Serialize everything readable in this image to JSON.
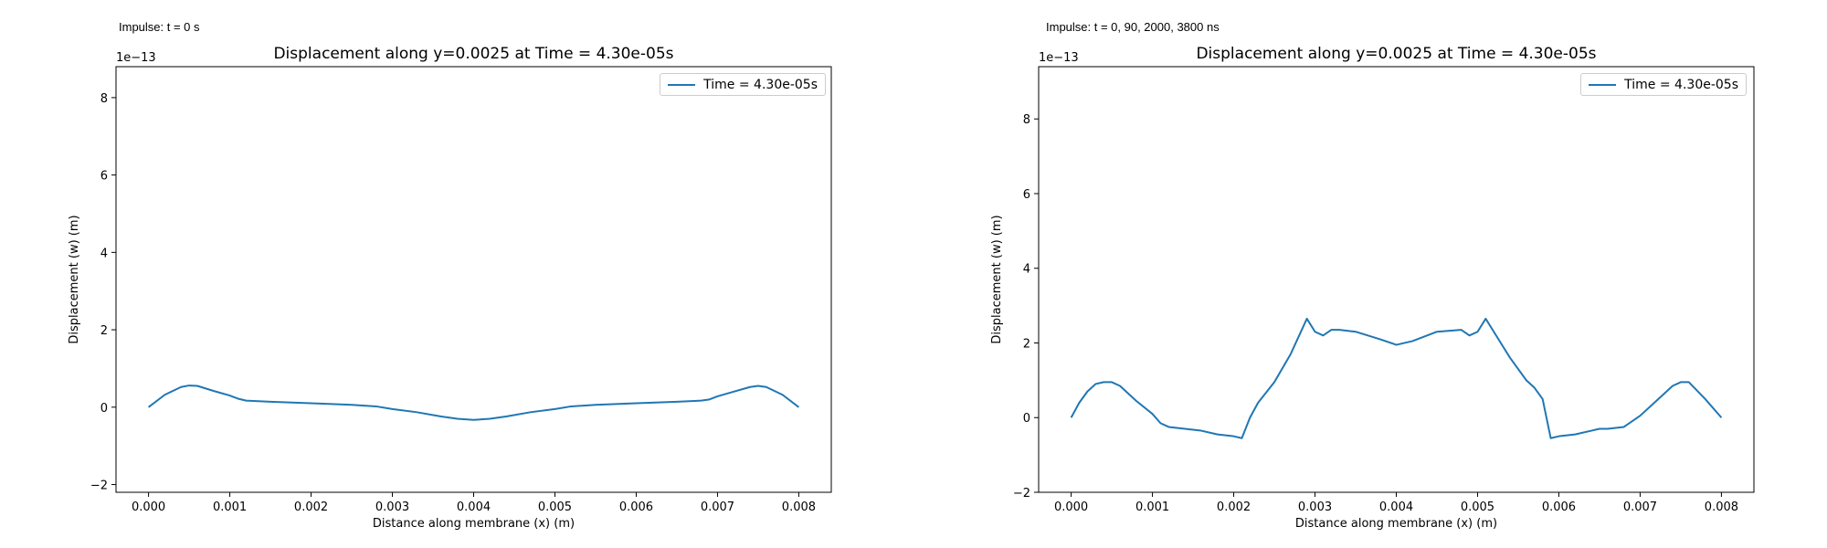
{
  "colors": {
    "series": "#1f77b4",
    "axis": "#000000",
    "legend_border": "#cccccc"
  },
  "chart_data": [
    {
      "type": "line",
      "caption": "Impulse: t = 0 s",
      "title": "Displacement along y=0.0025 at Time = 4.30e-05s",
      "xlabel": "Distance along membrane (x) (m)",
      "ylabel": "Displacement (w) (m)",
      "offset_text": "1e−13",
      "y_scale": 1e-13,
      "xlim": [
        -0.0004,
        0.0084
      ],
      "ylim": [
        -2.2,
        8.8
      ],
      "xticks": [
        0.0,
        0.001,
        0.002,
        0.003,
        0.004,
        0.005,
        0.006,
        0.007,
        0.008
      ],
      "xtick_labels": [
        "0.000",
        "0.001",
        "0.002",
        "0.003",
        "0.004",
        "0.005",
        "0.006",
        "0.007",
        "0.008"
      ],
      "yticks": [
        -2,
        0,
        2,
        4,
        6,
        8
      ],
      "ytick_labels": [
        "−2",
        "0",
        "2",
        "4",
        "6",
        "8"
      ],
      "legend_position": "upper right",
      "series": [
        {
          "name": "Time = 4.30e-05s",
          "x": [
            0,
            0.0002,
            0.0004,
            0.0005,
            0.0006,
            0.0008,
            0.001,
            0.0011,
            0.0012,
            0.0015,
            0.002,
            0.0025,
            0.0028,
            0.003,
            0.0033,
            0.0036,
            0.0038,
            0.004,
            0.0042,
            0.0044,
            0.0047,
            0.005,
            0.0052,
            0.0055,
            0.006,
            0.0065,
            0.0068,
            0.0069,
            0.007,
            0.0072,
            0.0074,
            0.0075,
            0.0076,
            0.0078,
            0.008
          ],
          "y": [
            0,
            0.32,
            0.52,
            0.56,
            0.55,
            0.42,
            0.3,
            0.22,
            0.17,
            0.14,
            0.1,
            0.06,
            0.02,
            -0.05,
            -0.13,
            -0.24,
            -0.3,
            -0.33,
            -0.3,
            -0.24,
            -0.13,
            -0.05,
            0.02,
            0.06,
            0.1,
            0.14,
            0.17,
            0.2,
            0.28,
            0.4,
            0.52,
            0.55,
            0.52,
            0.32,
            0
          ]
        }
      ]
    },
    {
      "type": "line",
      "caption": "Impulse: t = 0, 90, 2000, 3800 ns",
      "title": "Displacement along y=0.0025 at Time = 4.30e-05s",
      "xlabel": "Distance along membrane (x) (m)",
      "ylabel": "Displacement (w) (m)",
      "offset_text": "1e−13",
      "y_scale": 1e-13,
      "xlim": [
        -0.0004,
        0.0084
      ],
      "ylim": [
        -2.0,
        9.4
      ],
      "xticks": [
        0.0,
        0.001,
        0.002,
        0.003,
        0.004,
        0.005,
        0.006,
        0.007,
        0.008
      ],
      "xtick_labels": [
        "0.000",
        "0.001",
        "0.002",
        "0.003",
        "0.004",
        "0.005",
        "0.006",
        "0.007",
        "0.008"
      ],
      "yticks": [
        -2,
        0,
        2,
        4,
        6,
        8
      ],
      "ytick_labels": [
        "−2",
        "0",
        "2",
        "4",
        "6",
        "8"
      ],
      "legend_position": "upper right",
      "series": [
        {
          "name": "Time = 4.30e-05s",
          "x": [
            0,
            0.0001,
            0.0002,
            0.0003,
            0.0004,
            0.0005,
            0.0006,
            0.0008,
            0.001,
            0.0011,
            0.0012,
            0.0014,
            0.0016,
            0.0018,
            0.002,
            0.0021,
            0.0022,
            0.0023,
            0.0025,
            0.0027,
            0.0029,
            0.003,
            0.0031,
            0.0032,
            0.0033,
            0.0035,
            0.0038,
            0.004,
            0.0042,
            0.0045,
            0.0048,
            0.0049,
            0.005,
            0.0051,
            0.0052,
            0.0054,
            0.0056,
            0.0057,
            0.0058,
            0.0059,
            0.006,
            0.0062,
            0.0064,
            0.0065,
            0.0066,
            0.0068,
            0.007,
            0.0072,
            0.0074,
            0.0075,
            0.0076,
            0.0078,
            0.008
          ],
          "y": [
            0,
            0.4,
            0.7,
            0.9,
            0.95,
            0.95,
            0.85,
            0.45,
            0.1,
            -0.15,
            -0.25,
            -0.3,
            -0.35,
            -0.45,
            -0.5,
            -0.55,
            0,
            0.4,
            0.95,
            1.7,
            2.65,
            2.3,
            2.2,
            2.35,
            2.35,
            2.3,
            2.1,
            1.95,
            2.05,
            2.3,
            2.35,
            2.2,
            2.3,
            2.65,
            2.3,
            1.6,
            1.0,
            0.8,
            0.5,
            -0.55,
            -0.5,
            -0.45,
            -0.35,
            -0.3,
            -0.3,
            -0.25,
            0.05,
            0.45,
            0.85,
            0.95,
            0.95,
            0.5,
            0
          ]
        }
      ]
    }
  ]
}
